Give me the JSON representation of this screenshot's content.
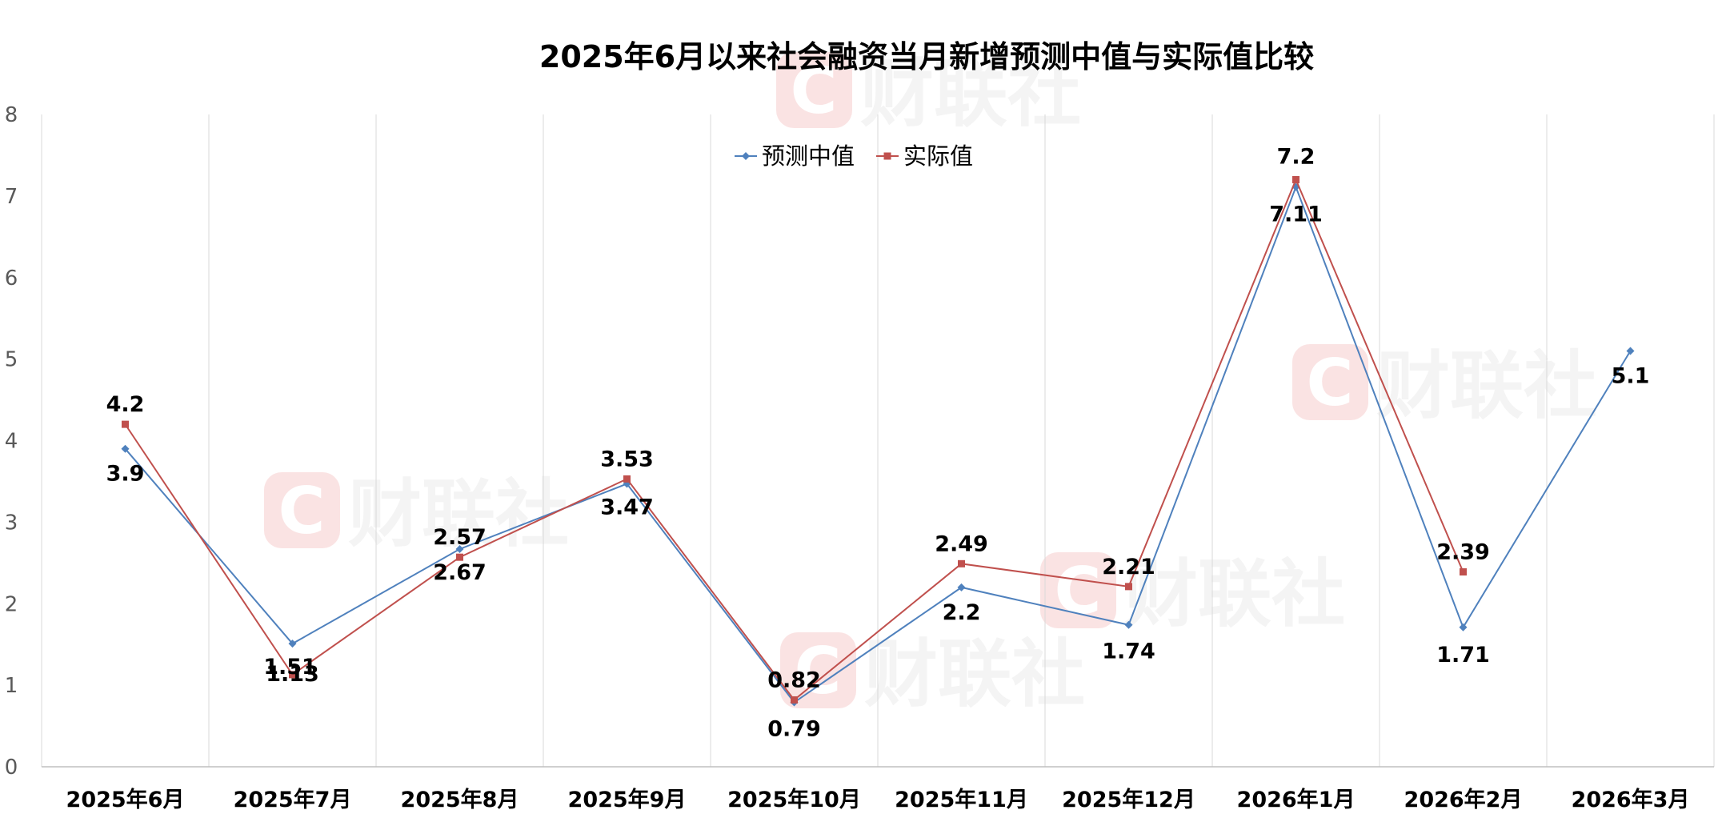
{
  "chart_data": {
    "type": "line",
    "title": "2025年6月以来社会融资当月新增预测中值与实际值比较",
    "categories": [
      "2025年6月",
      "2025年7月",
      "2025年8月",
      "2025年9月",
      "2025年10月",
      "2025年11月",
      "2025年12月",
      "2026年1月",
      "2026年2月",
      "2026年3月"
    ],
    "ylim": [
      0,
      8
    ],
    "yticks": [
      "0",
      "1",
      "2",
      "3",
      "4",
      "5",
      "6",
      "7",
      "8"
    ],
    "grid": "vertical",
    "legend_position": "top-center",
    "series": [
      {
        "name": "预测中值",
        "color": "#4F81BD",
        "marker": "diamond",
        "values": [
          3.9,
          1.51,
          2.67,
          3.47,
          0.79,
          2.2,
          1.74,
          7.11,
          1.71,
          5.1
        ],
        "labels": [
          "3.9",
          "1.51",
          "2.67",
          "3.47",
          "0.79",
          "2.2",
          "1.74",
          "7.11",
          "1.71",
          "5.1"
        ]
      },
      {
        "name": "实际值",
        "color": "#C0504D",
        "marker": "square",
        "values": [
          4.2,
          1.13,
          2.57,
          3.53,
          0.82,
          2.49,
          2.21,
          7.2,
          2.39,
          null
        ],
        "labels": [
          "4.2",
          "1.13",
          "2.57",
          "3.53",
          "0.82",
          "2.49",
          "2.21",
          "7.2",
          "2.39",
          null
        ]
      }
    ],
    "watermark": "财联社"
  }
}
